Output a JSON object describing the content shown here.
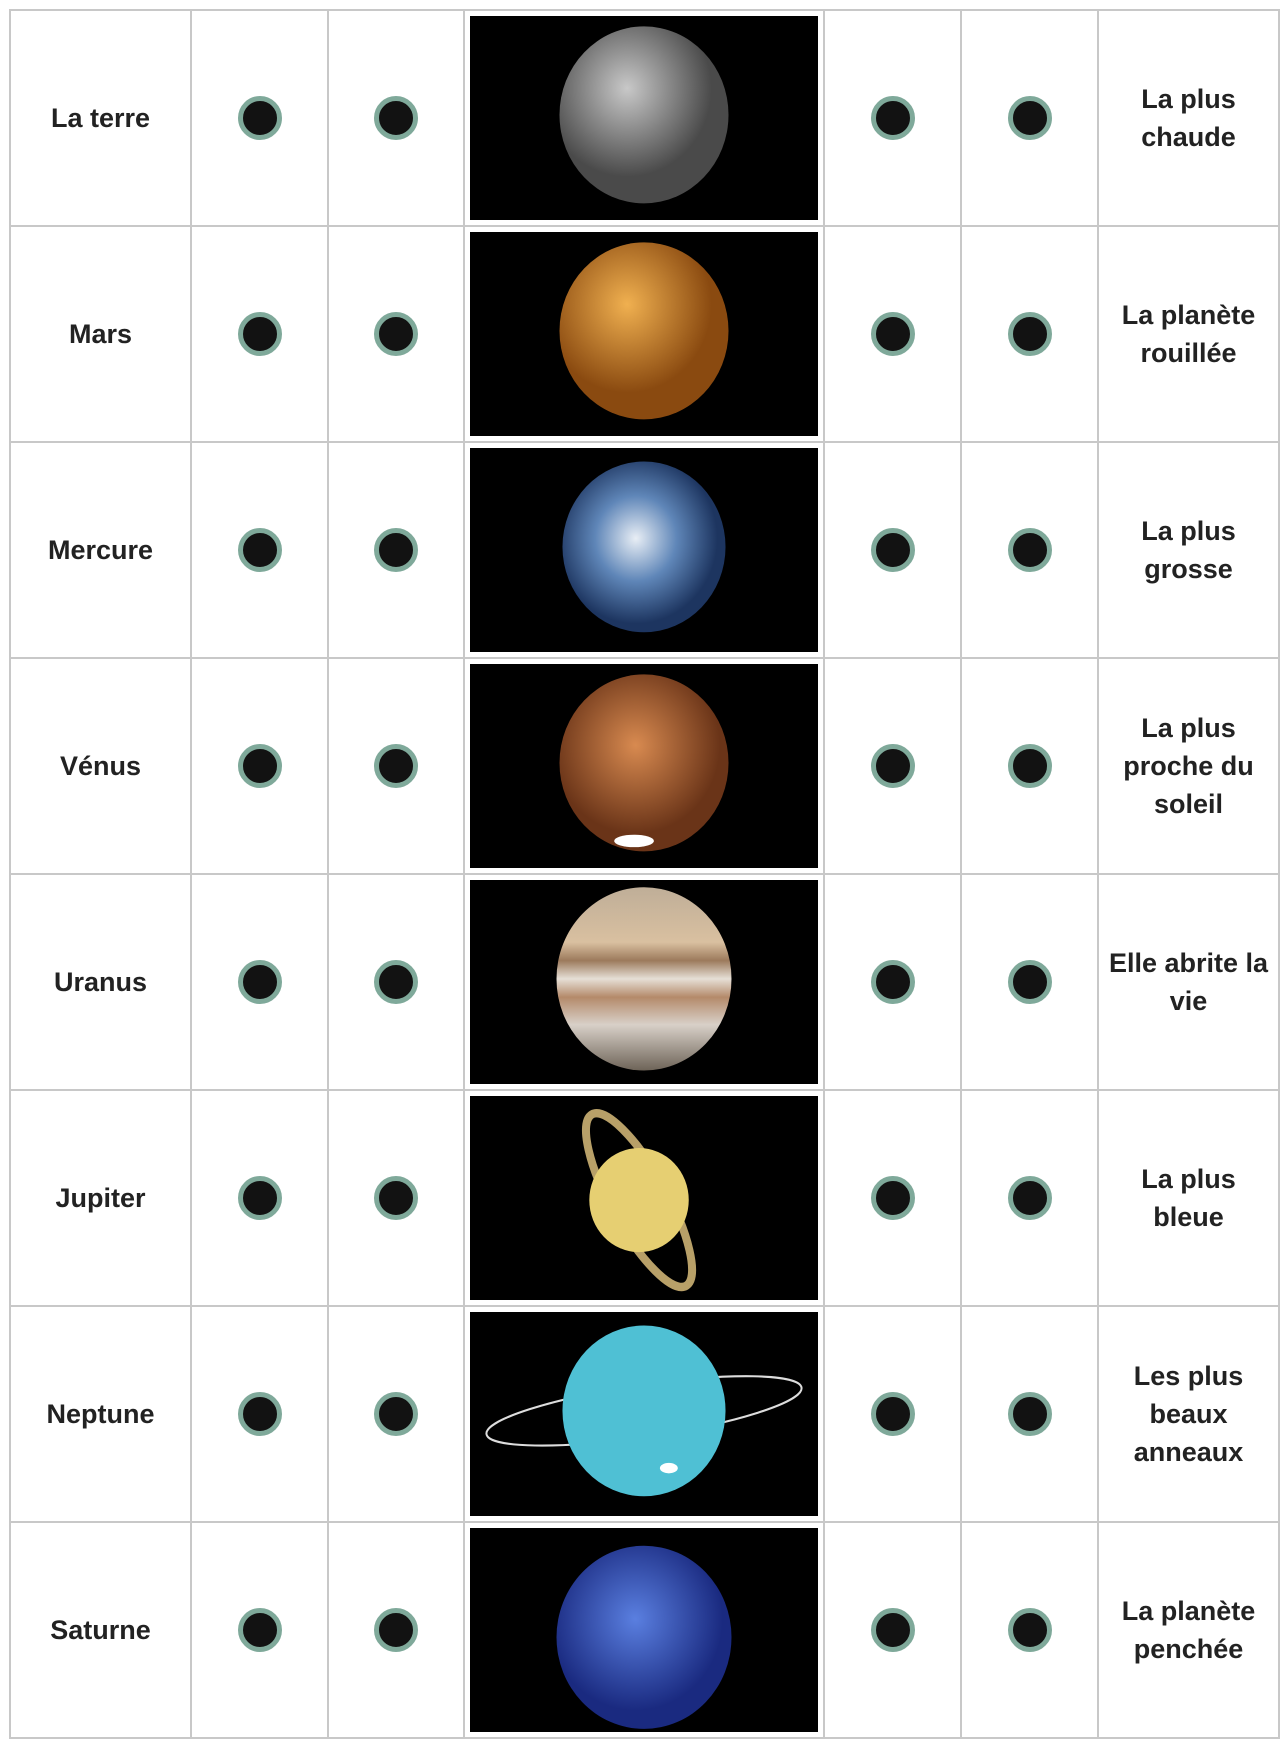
{
  "rows": [
    {
      "name": "La terre",
      "description": "La plus chaude"
    },
    {
      "name": "Mars",
      "description": "La planète rouillée"
    },
    {
      "name": "Mercure",
      "description": "La plus grosse"
    },
    {
      "name": "Vénus",
      "description": "La plus proche du soleil"
    },
    {
      "name": "Uranus",
      "description": "Elle abrite la vie"
    },
    {
      "name": "Jupiter",
      "description": "La plus bleue"
    },
    {
      "name": "Neptune",
      "description": "Les plus beaux anneaux"
    },
    {
      "name": "Saturne",
      "description": "La planète penchée"
    }
  ]
}
